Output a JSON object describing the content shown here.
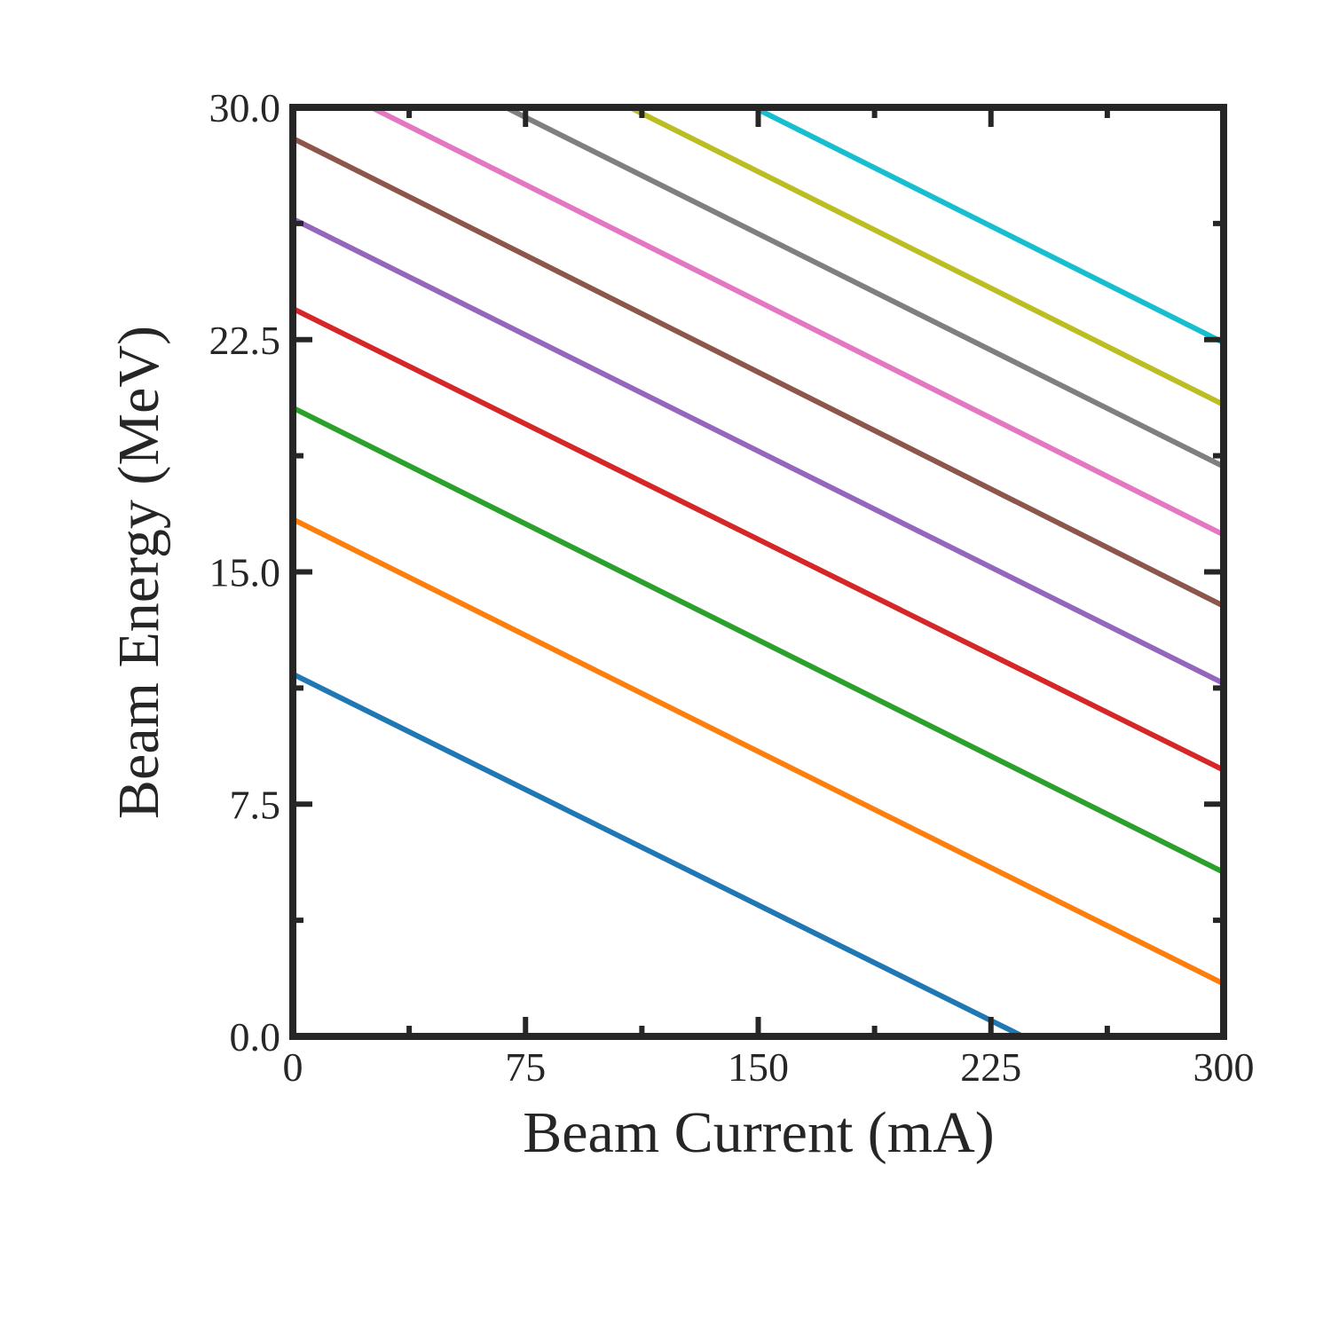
{
  "chart_data": {
    "type": "line",
    "title": "",
    "xlabel": "Beam Current (mA)",
    "ylabel": "Beam Energy (MeV)",
    "xlim": [
      0,
      300
    ],
    "ylim": [
      0,
      30
    ],
    "x_ticks": [
      "0",
      "75",
      "150",
      "225",
      "300"
    ],
    "y_ticks": [
      "0.0",
      "7.5",
      "15.0",
      "22.5",
      "30.0"
    ],
    "grid": false,
    "legend": "none",
    "series": [
      {
        "color": "#1f77b4",
        "x": [
          0,
          235.3
        ],
        "y": [
          11.7,
          0.0
        ]
      },
      {
        "color": "#ff7f0e",
        "x": [
          0,
          300
        ],
        "y": [
          16.7,
          1.7
        ]
      },
      {
        "color": "#2ca02c",
        "x": [
          0,
          300
        ],
        "y": [
          20.3,
          5.3
        ]
      },
      {
        "color": "#d62728",
        "x": [
          0,
          300
        ],
        "y": [
          23.5,
          8.6
        ]
      },
      {
        "color": "#9467bd",
        "x": [
          0,
          300
        ],
        "y": [
          26.4,
          11.4
        ]
      },
      {
        "color": "#8c564b",
        "x": [
          0,
          300
        ],
        "y": [
          29.0,
          13.9
        ]
      },
      {
        "color": "#e377c2",
        "x": [
          25.3,
          300
        ],
        "y": [
          30.0,
          16.2
        ]
      },
      {
        "color": "#7f7f7f",
        "x": [
          68.6,
          300
        ],
        "y": [
          30.0,
          18.4
        ]
      },
      {
        "color": "#bcbd22",
        "x": [
          108.6,
          300
        ],
        "y": [
          30.0,
          20.4
        ]
      },
      {
        "color": "#17becf",
        "x": [
          148.6,
          300
        ],
        "y": [
          30.0,
          22.4
        ]
      }
    ]
  }
}
